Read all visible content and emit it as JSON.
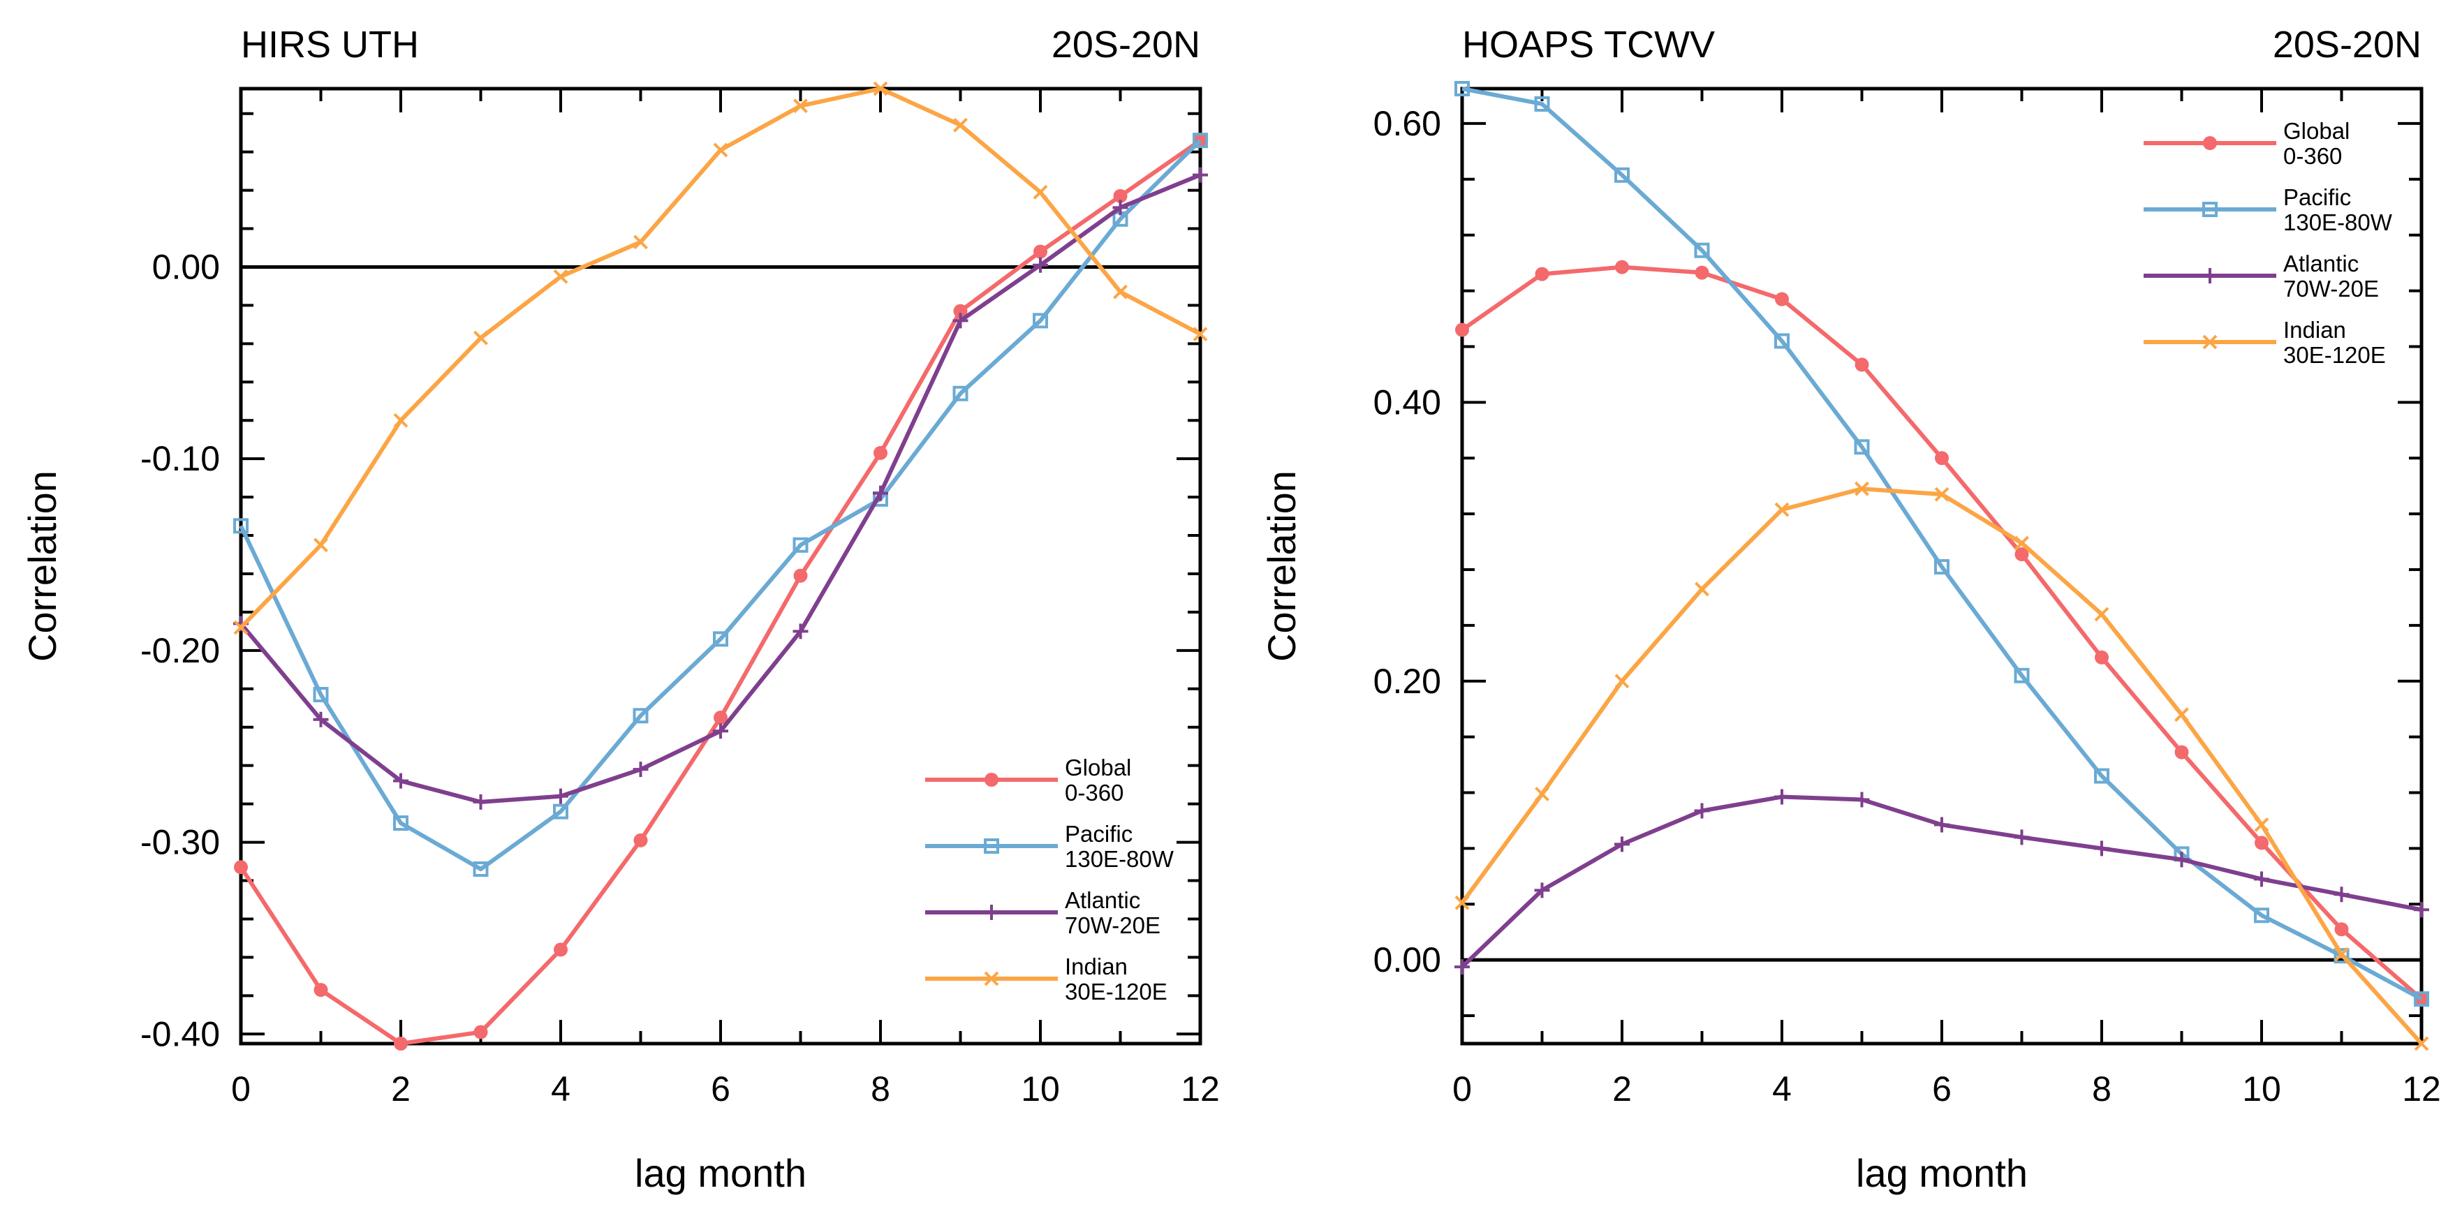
{
  "chart_data": [
    {
      "type": "line",
      "title": "HIRS UTH",
      "region": "20S-20N",
      "xlabel": "lag month",
      "ylabel": "Correlation",
      "xlim": [
        0,
        12
      ],
      "ylim": [
        -0.405,
        0.093
      ],
      "x": [
        0,
        1,
        2,
        3,
        4,
        5,
        6,
        7,
        8,
        9,
        10,
        11,
        12
      ],
      "x_ticks": [
        0,
        2,
        4,
        6,
        8,
        10,
        12
      ],
      "x_tick_labels": [
        "0",
        "2",
        "4",
        "6",
        "8",
        "10",
        "12"
      ],
      "y_ticks": [
        -0.4,
        -0.3,
        -0.2,
        -0.1,
        0.0
      ],
      "y_tick_labels": [
        "-0.40",
        "-0.30",
        "-0.20",
        "-0.10",
        "0.00"
      ],
      "zero_line": 0,
      "legend_position": "bottom-right",
      "series": [
        {
          "name": "Global",
          "sub": "0-360",
          "color": "#f4696b",
          "marker": "dot",
          "values": [
            -0.313,
            -0.377,
            -0.405,
            -0.399,
            -0.356,
            -0.299,
            -0.235,
            -0.161,
            -0.097,
            -0.023,
            0.008,
            0.037,
            0.066
          ]
        },
        {
          "name": "Pacific",
          "sub": "130E-80W",
          "color": "#6aaad4",
          "marker": "square",
          "values": [
            -0.135,
            -0.223,
            -0.29,
            -0.314,
            -0.284,
            -0.234,
            -0.194,
            -0.145,
            -0.121,
            -0.066,
            -0.028,
            0.025,
            0.066
          ]
        },
        {
          "name": "Atlantic",
          "sub": "70W-20E",
          "color": "#7f3f8e",
          "marker": "plus",
          "values": [
            -0.186,
            -0.236,
            -0.268,
            -0.279,
            -0.276,
            -0.262,
            -0.242,
            -0.19,
            -0.118,
            -0.028,
            0.001,
            0.031,
            0.048
          ]
        },
        {
          "name": "Indian",
          "sub": "30E-120E",
          "color": "#fca545",
          "marker": "x",
          "values": [
            -0.188,
            -0.145,
            -0.08,
            -0.037,
            -0.005,
            0.013,
            0.061,
            0.084,
            0.093,
            0.074,
            0.039,
            -0.013,
            -0.035
          ]
        }
      ]
    },
    {
      "type": "line",
      "title": "HOAPS TCWV",
      "region": "20S-20N",
      "xlabel": "lag month",
      "ylabel": "Correlation",
      "xlim": [
        0,
        12
      ],
      "ylim": [
        -0.06,
        0.625
      ],
      "x": [
        0,
        1,
        2,
        3,
        4,
        5,
        6,
        7,
        8,
        9,
        10,
        11,
        12
      ],
      "x_ticks": [
        0,
        2,
        4,
        6,
        8,
        10,
        12
      ],
      "x_tick_labels": [
        "0",
        "2",
        "4",
        "6",
        "8",
        "10",
        "12"
      ],
      "y_ticks": [
        0.0,
        0.2,
        0.4,
        0.6
      ],
      "y_tick_labels": [
        "0.00",
        "0.20",
        "0.40",
        "0.60"
      ],
      "zero_line": 0,
      "legend_position": "top-right",
      "series": [
        {
          "name": "Global",
          "sub": "0-360",
          "color": "#f4696b",
          "marker": "dot",
          "values": [
            0.452,
            0.492,
            0.497,
            0.493,
            0.474,
            0.427,
            0.36,
            0.291,
            0.217,
            0.149,
            0.084,
            0.022,
            -0.028
          ]
        },
        {
          "name": "Pacific",
          "sub": "130E-80W",
          "color": "#6aaad4",
          "marker": "square",
          "values": [
            0.625,
            0.614,
            0.563,
            0.509,
            0.444,
            0.368,
            0.282,
            0.204,
            0.132,
            0.076,
            0.032,
            0.003,
            -0.028
          ]
        },
        {
          "name": "Atlantic",
          "sub": "70W-20E",
          "color": "#7f3f8e",
          "marker": "plus",
          "values": [
            -0.005,
            0.05,
            0.083,
            0.107,
            0.117,
            0.115,
            0.097,
            0.088,
            0.08,
            0.072,
            0.058,
            0.047,
            0.036
          ]
        },
        {
          "name": "Indian",
          "sub": "30E-120E",
          "color": "#fca545",
          "marker": "x",
          "values": [
            0.041,
            0.119,
            0.2,
            0.266,
            0.323,
            0.338,
            0.334,
            0.299,
            0.248,
            0.176,
            0.097,
            0.004,
            -0.06
          ]
        }
      ]
    }
  ]
}
